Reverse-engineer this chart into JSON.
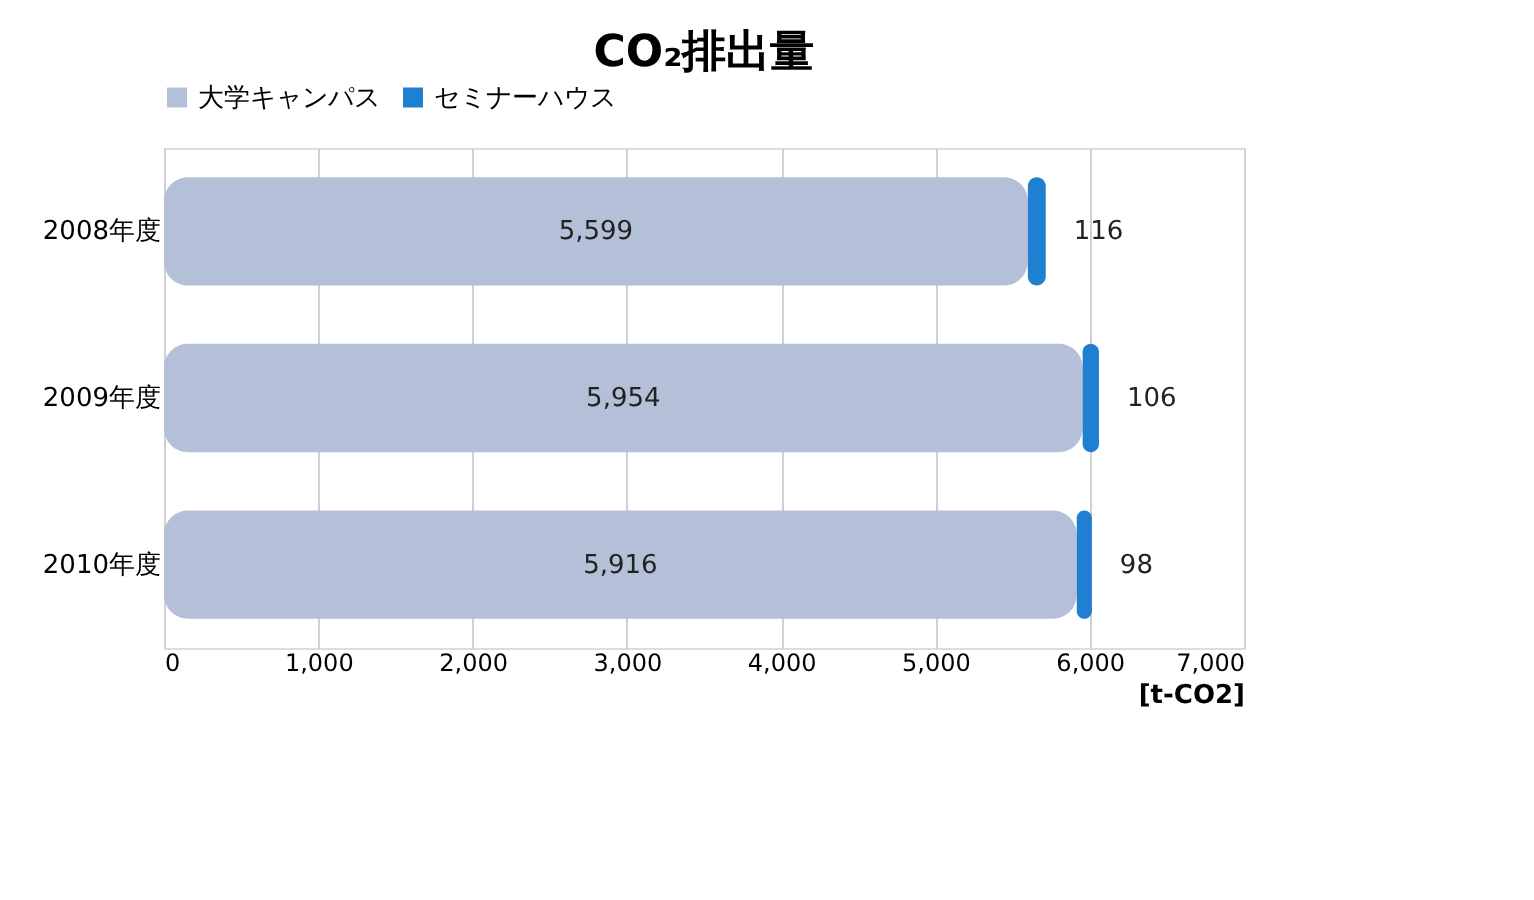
{
  "chart_data": {
    "type": "bar",
    "orientation": "horizontal",
    "stacked": true,
    "title": "CO₂排出量",
    "xlabel": "[t-CO2]",
    "categories": [
      "2008年度",
      "2009年度",
      "2010年度"
    ],
    "series": [
      {
        "name": "大学キャンパス",
        "color": "#b4c0d8",
        "values": [
          5599,
          5954,
          5916
        ],
        "value_labels": [
          "5,599",
          "5,954",
          "5,916"
        ]
      },
      {
        "name": "セミナーハウス",
        "color": "#1f7fd0",
        "values": [
          116,
          106,
          98
        ],
        "value_labels": [
          "116",
          "106",
          "98"
        ]
      }
    ],
    "xlim": [
      0,
      7000
    ],
    "xticks": [
      0,
      {
        "value": 1000,
        "label": "1,000"
      },
      {
        "value": 2000,
        "label": "2,000"
      },
      {
        "value": 3000,
        "label": "3,000"
      },
      {
        "value": 4000,
        "label": "4,000"
      },
      {
        "value": 5000,
        "label": "5,000"
      },
      {
        "value": 6000,
        "label": "6,000"
      },
      {
        "value": 7000,
        "label": "7,000"
      }
    ],
    "grid": "x",
    "legend": "top"
  }
}
